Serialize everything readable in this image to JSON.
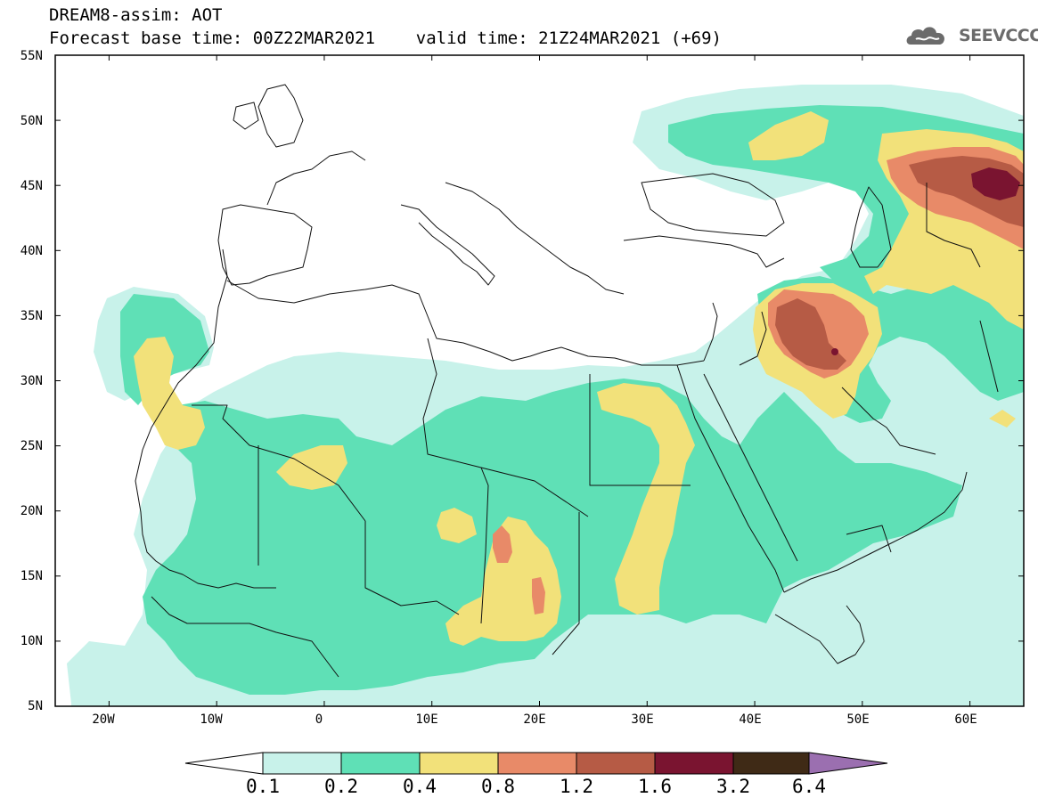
{
  "header": {
    "line1": "DREAM8-assim: AOT",
    "line2": "Forecast base time: 00Z22MAR2021    valid time: 21Z24MAR2021 (+69)"
  },
  "logo": {
    "text": "SEEVCCC",
    "icon": "cloud-logo-icon"
  },
  "map": {
    "lat_labels": [
      "55N",
      "50N",
      "45N",
      "40N",
      "35N",
      "30N",
      "25N",
      "20N",
      "15N",
      "10N",
      "5N"
    ],
    "lon_labels": [
      "20W",
      "10W",
      "0",
      "10E",
      "20E",
      "30E",
      "40E",
      "50E",
      "60E"
    ],
    "lon_range": [
      -25,
      65
    ],
    "lat_range": [
      5,
      55
    ],
    "variable": "AOT"
  },
  "colorbar": {
    "levels": [
      "0.1",
      "0.2",
      "0.4",
      "0.8",
      "1.2",
      "1.6",
      "3.2",
      "6.4"
    ],
    "colors": {
      "c0_under": "#ffffff",
      "c1": "#c8f2ea",
      "c2": "#5fe0b6",
      "c3": "#f2e17a",
      "c4": "#e88a68",
      "c5": "#b65b45",
      "c6": "#7a1430",
      "c7": "#3f2a16",
      "c8_over": "#9b6fb0"
    }
  }
}
